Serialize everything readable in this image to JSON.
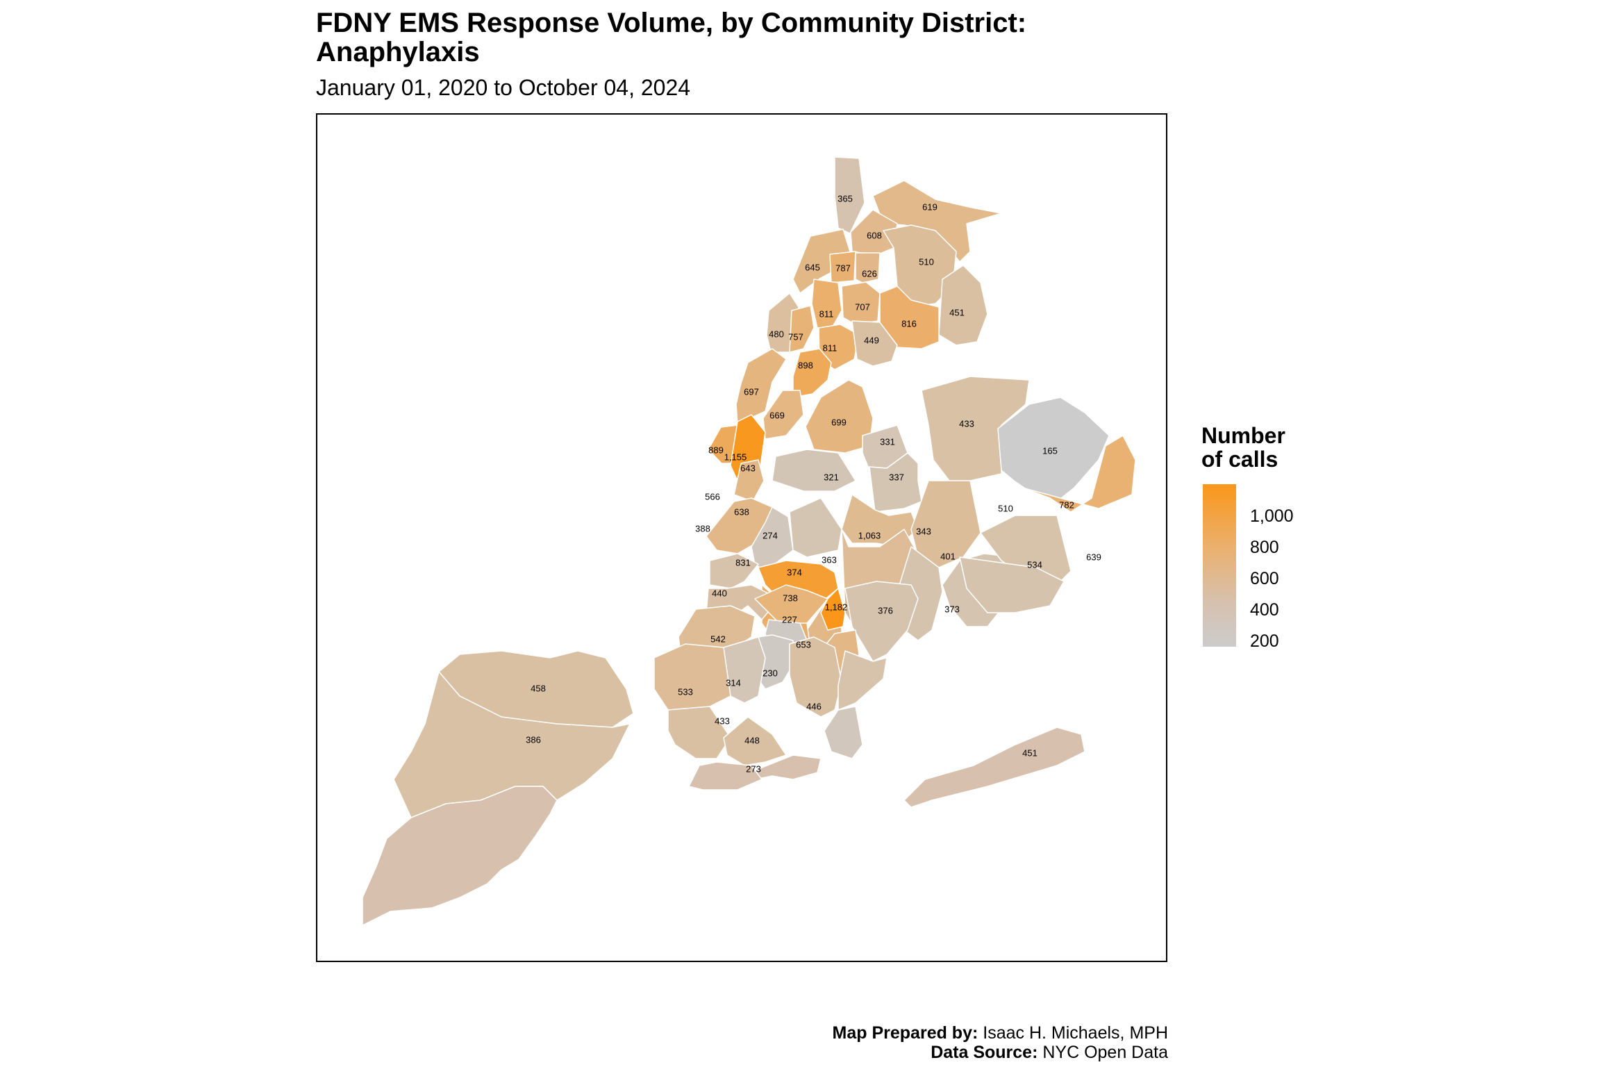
{
  "title": "FDNY EMS Response Volume, by Community District: Anaphylaxis",
  "title_lines": [
    "FDNY EMS Response Volume, by Community District:",
    "Anaphylaxis"
  ],
  "subtitle": "January 01, 2020 to October 04, 2024",
  "legend": {
    "title_lines": [
      "Number",
      "of calls"
    ],
    "ticks": [
      "1,000",
      "800",
      "600",
      "400",
      "200"
    ],
    "color_low": "#CCCCCC",
    "color_mid": "#E9B274",
    "color_high": "#FA9619"
  },
  "credits": {
    "prepared_label": "Map Prepared by:",
    "prepared_value": " Isaac H. Michaels, MPH",
    "source_label": "Data Source:",
    "source_value": " NYC Open Data"
  },
  "districts": [
    {
      "label": "365",
      "value": 365
    },
    {
      "label": "619",
      "value": 619
    },
    {
      "label": "608",
      "value": 608
    },
    {
      "label": "510",
      "value": 510
    },
    {
      "label": "645",
      "value": 645
    },
    {
      "label": "787",
      "value": 787
    },
    {
      "label": "626",
      "value": 626
    },
    {
      "label": "811",
      "value": 811
    },
    {
      "label": "707",
      "value": 707
    },
    {
      "label": "816",
      "value": 816
    },
    {
      "label": "451",
      "value": 451
    },
    {
      "label": "480",
      "value": 480
    },
    {
      "label": "757",
      "value": 757
    },
    {
      "label": "811",
      "value": 811
    },
    {
      "label": "449",
      "value": 449
    },
    {
      "label": "898",
      "value": 898
    },
    {
      "label": "697",
      "value": 697
    },
    {
      "label": "699",
      "value": 699
    },
    {
      "label": "669",
      "value": 669
    },
    {
      "label": "433",
      "value": 433
    },
    {
      "label": "889",
      "value": 889
    },
    {
      "label": "1,155",
      "value": 1155
    },
    {
      "label": "643",
      "value": 643
    },
    {
      "label": "331",
      "value": 331
    },
    {
      "label": "165",
      "value": 165
    },
    {
      "label": "321",
      "value": 321
    },
    {
      "label": "337",
      "value": 337
    },
    {
      "label": "566",
      "value": 566
    },
    {
      "label": "782",
      "value": 782
    },
    {
      "label": "638",
      "value": 638
    },
    {
      "label": "274",
      "value": 274
    },
    {
      "label": "343",
      "value": 343
    },
    {
      "label": "510",
      "value": 510
    },
    {
      "label": "388",
      "value": 388
    },
    {
      "label": "1,063",
      "value": 1063
    },
    {
      "label": "534",
      "value": 534
    },
    {
      "label": "639",
      "value": 639
    },
    {
      "label": "831",
      "value": 831
    },
    {
      "label": "374",
      "value": 374
    },
    {
      "label": "363",
      "value": 363
    },
    {
      "label": "401",
      "value": 401
    },
    {
      "label": "440",
      "value": 440
    },
    {
      "label": "738",
      "value": 738
    },
    {
      "label": "1,182",
      "value": 1182
    },
    {
      "label": "376",
      "value": 376
    },
    {
      "label": "373",
      "value": 373
    },
    {
      "label": "227",
      "value": 227
    },
    {
      "label": "542",
      "value": 542
    },
    {
      "label": "653",
      "value": 653
    },
    {
      "label": "458",
      "value": 458
    },
    {
      "label": "230",
      "value": 230
    },
    {
      "label": "314",
      "value": 314
    },
    {
      "label": "533",
      "value": 533
    },
    {
      "label": "446",
      "value": 446
    },
    {
      "label": "386",
      "value": 386
    },
    {
      "label": "433",
      "value": 433
    },
    {
      "label": "448",
      "value": 448
    },
    {
      "label": "451",
      "value": 451
    },
    {
      "label": "273",
      "value": 273
    }
  ]
}
